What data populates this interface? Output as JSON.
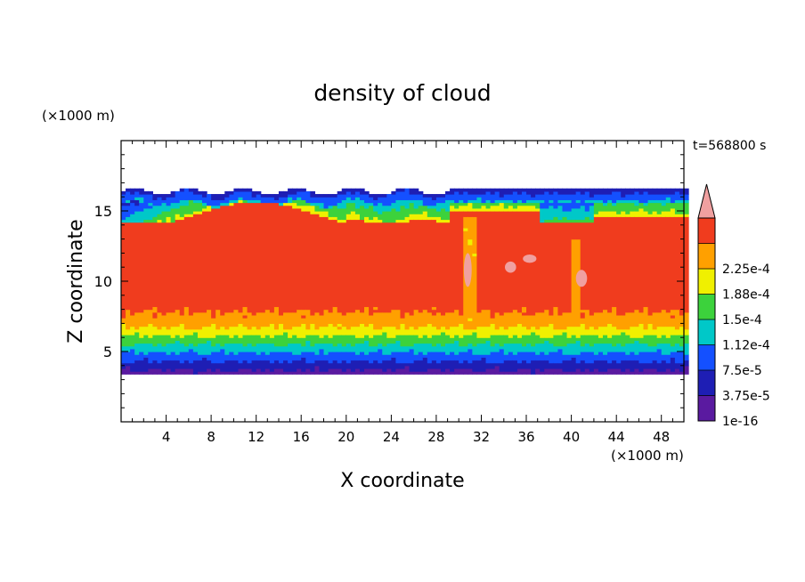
{
  "chart_data": {
    "type": "heatmap",
    "title": "density of cloud",
    "xlabel": "X coordinate",
    "ylabel": "Z coordinate",
    "x_unit": "(×1000 m)",
    "y_unit": "(×1000 m)",
    "time_label": "t=568800 s",
    "xlim": [
      0,
      50
    ],
    "ylim": [
      0,
      20
    ],
    "x_ticks": [
      "4",
      "8",
      "12",
      "16",
      "20",
      "24",
      "28",
      "32",
      "36",
      "40",
      "44",
      "48"
    ],
    "y_ticks": [
      "5",
      "10",
      "15"
    ],
    "colorbar": {
      "labels": [
        "1e-16",
        "3.75e-5",
        "7.5e-5",
        "1.12e-4",
        "1.5e-4",
        "1.88e-4",
        "2.25e-4"
      ],
      "colors": [
        "#5a1aa0",
        "#1e1eb4",
        "#1450ff",
        "#00c8c8",
        "#3cd23c",
        "#f0f000",
        "#ffa000",
        "#f03c1e"
      ],
      "overflow_color": "#f0a0a0"
    },
    "field": {
      "cloud_base_z": 3.4,
      "cloud_top_z": 16.7,
      "max_density": 0.00024
    }
  }
}
